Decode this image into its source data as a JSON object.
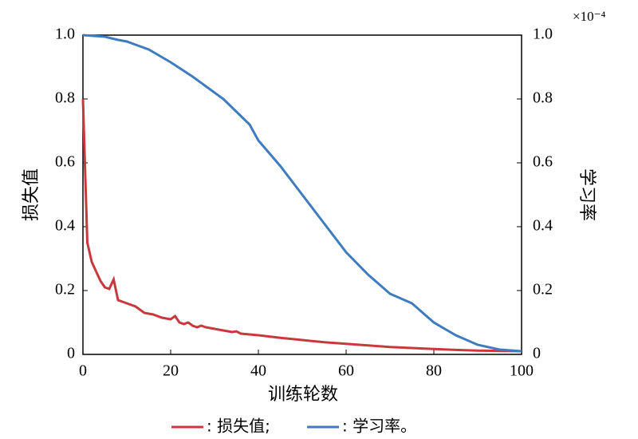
{
  "chart_data": {
    "type": "line",
    "xlabel": "训练轮数",
    "ylabel": "损失值",
    "y2label": "学习率",
    "y2_multiplier": "×10⁻⁴",
    "xlim": [
      0,
      100
    ],
    "xticks": [
      0,
      20,
      40,
      60,
      80,
      100
    ],
    "ylim": [
      0,
      1
    ],
    "yticks": [
      0,
      0.2,
      0.4,
      0.6,
      0.8,
      {
        "value": 1,
        "label": "1.0"
      }
    ],
    "y2lim": [
      0,
      1
    ],
    "y2ticks": [
      0,
      0.2,
      0.4,
      0.6,
      0.8,
      {
        "value": 1,
        "label": "1.0"
      }
    ],
    "legend": "bottom",
    "series": [
      {
        "name": ": 损失值;",
        "color": "#c8393e",
        "x": [
          0,
          1,
          2,
          3,
          4,
          5,
          6,
          7,
          8,
          9,
          10,
          12,
          14,
          16,
          18,
          20,
          21,
          22,
          23,
          24,
          25,
          26,
          27,
          28,
          30,
          32,
          34,
          35,
          36,
          40,
          45,
          50,
          55,
          60,
          65,
          70,
          75,
          80,
          85,
          90,
          95,
          100
        ],
        "values": [
          0.8,
          0.35,
          0.29,
          0.26,
          0.23,
          0.21,
          0.205,
          0.235,
          0.17,
          0.165,
          0.16,
          0.15,
          0.13,
          0.125,
          0.115,
          0.11,
          0.12,
          0.1,
          0.095,
          0.1,
          0.09,
          0.085,
          0.09,
          0.085,
          0.08,
          0.075,
          0.07,
          0.072,
          0.065,
          0.06,
          0.052,
          0.045,
          0.038,
          0.033,
          0.028,
          0.023,
          0.02,
          0.017,
          0.014,
          0.012,
          0.011,
          0.01
        ]
      },
      {
        "name": ": 学习率。",
        "color": "#3f7cbf",
        "axis": "y2",
        "x": [
          0,
          5,
          8,
          10,
          12,
          15,
          20,
          25,
          28,
          32,
          35,
          38,
          40,
          45,
          50,
          55,
          60,
          65,
          70,
          75,
          80,
          85,
          90,
          95,
          100
        ],
        "values": [
          1.0,
          0.995,
          0.985,
          0.98,
          0.97,
          0.955,
          0.915,
          0.87,
          0.84,
          0.8,
          0.76,
          0.72,
          0.67,
          0.59,
          0.5,
          0.41,
          0.32,
          0.25,
          0.19,
          0.16,
          0.1,
          0.06,
          0.03,
          0.015,
          0.01
        ]
      }
    ]
  }
}
